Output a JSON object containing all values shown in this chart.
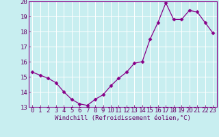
{
  "x": [
    0,
    1,
    2,
    3,
    4,
    5,
    6,
    7,
    8,
    9,
    10,
    11,
    12,
    13,
    14,
    15,
    16,
    17,
    18,
    19,
    20,
    21,
    22,
    23
  ],
  "y": [
    15.3,
    15.1,
    14.9,
    14.6,
    14.0,
    13.5,
    13.2,
    13.1,
    13.5,
    13.8,
    14.4,
    14.9,
    15.3,
    15.9,
    16.0,
    17.5,
    18.6,
    19.9,
    18.8,
    18.8,
    19.4,
    19.3,
    18.6,
    17.9
  ],
  "line_color": "#880088",
  "marker": "D",
  "marker_size": 2.5,
  "bg_color": "#c8eef0",
  "grid_color": "#ffffff",
  "xlabel": "Windchill (Refroidissement éolien,°C)",
  "xlim": [
    -0.5,
    23.5
  ],
  "ylim": [
    13,
    20
  ],
  "yticks": [
    13,
    14,
    15,
    16,
    17,
    18,
    19,
    20
  ],
  "xticks": [
    0,
    1,
    2,
    3,
    4,
    5,
    6,
    7,
    8,
    9,
    10,
    11,
    12,
    13,
    14,
    15,
    16,
    17,
    18,
    19,
    20,
    21,
    22,
    23
  ],
  "label_color": "#660066",
  "spine_color": "#880088",
  "font_size": 6.5,
  "xlabel_fontsize": 6.5
}
